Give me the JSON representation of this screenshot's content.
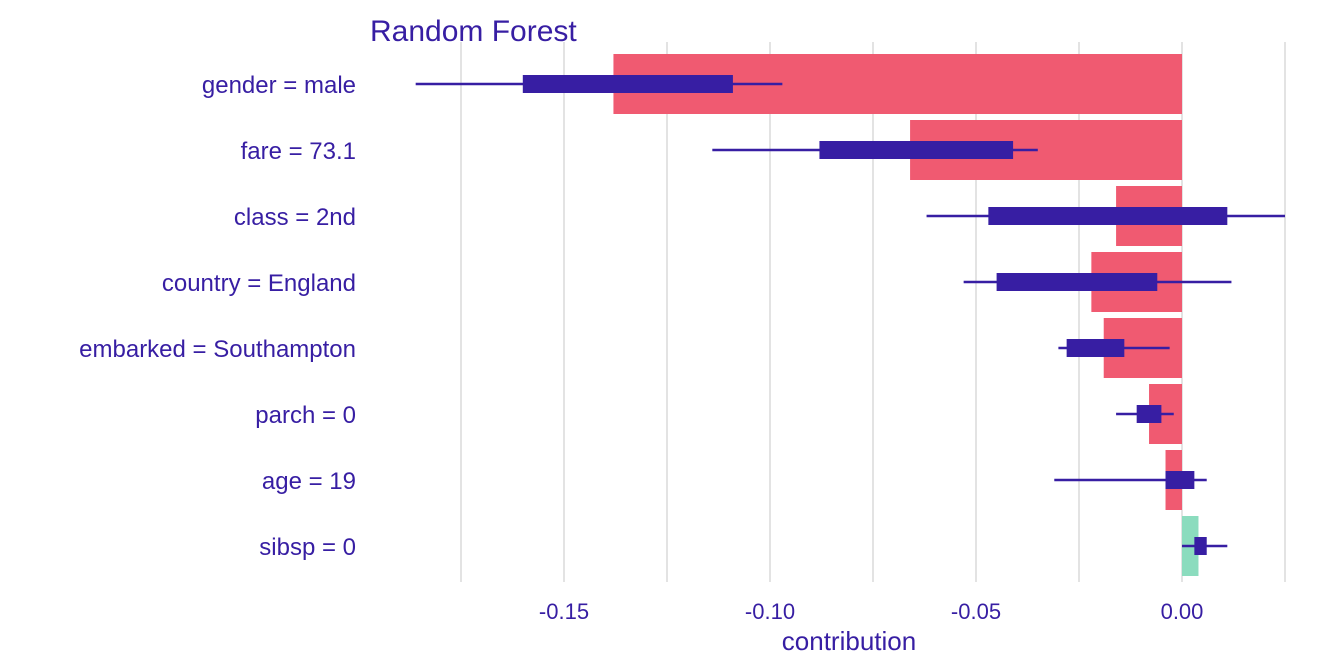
{
  "chart_data": {
    "type": "bar",
    "title": "Random Forest",
    "xlabel": "contribution",
    "ylabel": "",
    "xlim": [
      -0.1875,
      0.025
    ],
    "grid": true,
    "legend": "none",
    "x_ticks": [
      {
        "value": -0.15,
        "label": "-0.15"
      },
      {
        "value": -0.1,
        "label": "-0.10"
      },
      {
        "value": -0.05,
        "label": "-0.05"
      },
      {
        "value": 0.0,
        "label": "0.00"
      }
    ],
    "minor_gridlines": [
      -0.175,
      -0.125,
      -0.075,
      -0.025,
      0.025
    ],
    "categories": [
      "gender = male",
      "fare = 73.1",
      "class = 2nd",
      "country = England",
      "embarked = Southampton",
      "parch = 0",
      "age = 19",
      "sibsp = 0"
    ],
    "values": [
      -0.138,
      -0.066,
      -0.016,
      -0.022,
      -0.019,
      -0.008,
      -0.004,
      0.004
    ],
    "boxplots": [
      {
        "whisker_low": -0.186,
        "q1": -0.16,
        "q3": -0.109,
        "whisker_high": -0.097
      },
      {
        "whisker_low": -0.114,
        "q1": -0.088,
        "q3": -0.041,
        "whisker_high": -0.035
      },
      {
        "whisker_low": -0.062,
        "q1": -0.047,
        "q3": 0.011,
        "whisker_high": 0.025
      },
      {
        "whisker_low": -0.053,
        "q1": -0.045,
        "q3": -0.006,
        "whisker_high": 0.012
      },
      {
        "whisker_low": -0.03,
        "q1": -0.028,
        "q3": -0.014,
        "whisker_high": -0.003
      },
      {
        "whisker_low": -0.016,
        "q1": -0.011,
        "q3": -0.005,
        "whisker_high": -0.002
      },
      {
        "whisker_low": -0.031,
        "q1": -0.004,
        "q3": 0.003,
        "whisker_high": 0.006
      },
      {
        "whisker_low": 0.0,
        "q1": 0.003,
        "q3": 0.006,
        "whisker_high": 0.011
      }
    ],
    "colors": {
      "negative": "#f05a71",
      "positive": "#8bdcbe",
      "boxplot": "#371ea3",
      "text": "#371ea3",
      "grid": "#e3e3e3"
    }
  }
}
